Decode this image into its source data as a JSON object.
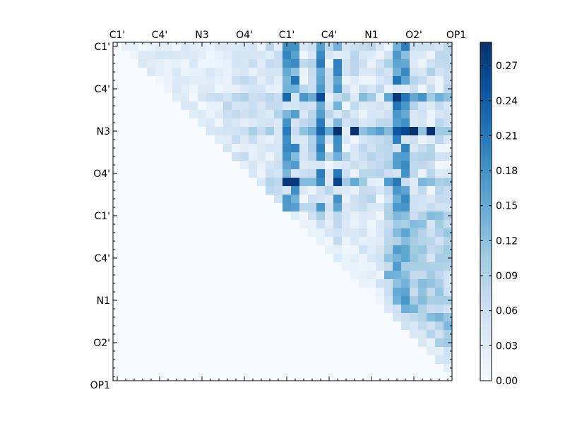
{
  "chart_data": {
    "type": "heatmap",
    "title": "",
    "xlabel": "",
    "ylabel": "",
    "x_tick_labels": [
      "C1'",
      "C4'",
      "N3",
      "O4'",
      "C1'",
      "C4'",
      "N1",
      "O2'",
      "OP1"
    ],
    "y_tick_labels": [
      "C1'",
      "C4'",
      "N3",
      "O4'",
      "C1'",
      "C4'",
      "N1",
      "O2'",
      "OP1"
    ],
    "x_ticks_position": "top",
    "n_rows": 40,
    "n_cols": 40,
    "colormap": "Blues",
    "colorbar": {
      "min": 0.0,
      "max": 0.29,
      "ticks": [
        0.0,
        0.03,
        0.06,
        0.09,
        0.12,
        0.15,
        0.18,
        0.21,
        0.24,
        0.27
      ],
      "tick_labels": [
        "0.00",
        "0.03",
        "0.06",
        "0.09",
        "0.12",
        "0.15",
        "0.18",
        "0.21",
        "0.24",
        "0.27"
      ],
      "placement": "right"
    },
    "strong_columns": [
      20,
      21,
      24,
      26,
      33,
      34
    ],
    "strong_rows": [
      6,
      10,
      16,
      22,
      24
    ],
    "peak_row": 10,
    "peak_value": 0.29,
    "lower_triangle_value": 0.0
  }
}
